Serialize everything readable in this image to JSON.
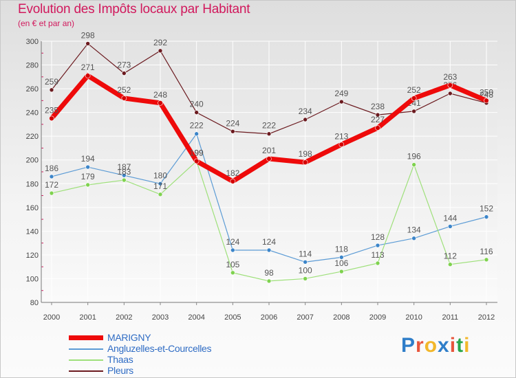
{
  "header": {
    "title": "Evolution des Impôts locaux par Habitant",
    "subtitle": "(en € et par an)"
  },
  "brand": {
    "text": "Proxiti",
    "colors": [
      "#2f7ec9",
      "#e8553c",
      "#f2b72a",
      "#2f7ec9",
      "#e8553c",
      "#2aa64a",
      "#f2b72a"
    ]
  },
  "chart_data": {
    "type": "line",
    "title": "Evolution des Impôts locaux par Habitant",
    "subtitle": "(en € et par an)",
    "xlabel": "",
    "ylabel": "",
    "x": [
      "2000",
      "2001",
      "2002",
      "2003",
      "2004",
      "2005",
      "2006",
      "2007",
      "2008",
      "2009",
      "2010",
      "2011",
      "2012"
    ],
    "ylim": [
      80,
      300
    ],
    "yticks": [
      80,
      100,
      120,
      140,
      160,
      180,
      200,
      220,
      240,
      260,
      280,
      300
    ],
    "grid": true,
    "legend_position": "bottom-left",
    "series": [
      {
        "name": "Pleurs",
        "color": "#6b1a1f",
        "marker": "#6b1a1f",
        "width": 1.2,
        "values": [
          259,
          298,
          273,
          292,
          240,
          224,
          222,
          234,
          249,
          238,
          241,
          256,
          248
        ],
        "labels": [
          "259",
          "298",
          "273",
          "292",
          "240",
          "224",
          "222",
          "234",
          "249",
          "238",
          "241",
          "256",
          "248"
        ]
      },
      {
        "name": "Angluzelles-et-Courcelles",
        "color": "#5b9bd5",
        "marker": "#3c85c9",
        "width": 1.2,
        "values": [
          186,
          194,
          187,
          180,
          222,
          124,
          124,
          114,
          118,
          128,
          134,
          144,
          152
        ],
        "labels": [
          "186",
          "194",
          "187",
          "180",
          "222",
          "124",
          "124",
          "114",
          "118",
          "128",
          "134",
          "144",
          "152"
        ]
      },
      {
        "name": "Thaas",
        "color": "#9ee07a",
        "marker": "#7fd24f",
        "width": 1.2,
        "values": [
          172,
          179,
          183,
          171,
          199,
          105,
          98,
          100,
          106,
          113,
          196,
          112,
          116
        ],
        "labels": [
          "172",
          "179",
          "183",
          "171",
          "199",
          "105",
          "98",
          "100",
          "106",
          "113",
          "196",
          "112",
          "116"
        ]
      },
      {
        "name": "MARIGNY",
        "color": "#ee0a0a",
        "marker": "#d40000",
        "width": 7,
        "values": [
          235,
          271,
          252,
          248,
          199,
          182,
          201,
          198,
          213,
          227,
          252,
          263,
          250
        ],
        "labels": [
          "235",
          "271",
          "252",
          "248",
          "199",
          "182",
          "201",
          "198",
          "213",
          "227",
          "252",
          "263",
          "250"
        ]
      }
    ],
    "legend_order": [
      "MARIGNY",
      "Angluzelles-et-Courcelles",
      "Thaas",
      "Pleurs"
    ]
  }
}
